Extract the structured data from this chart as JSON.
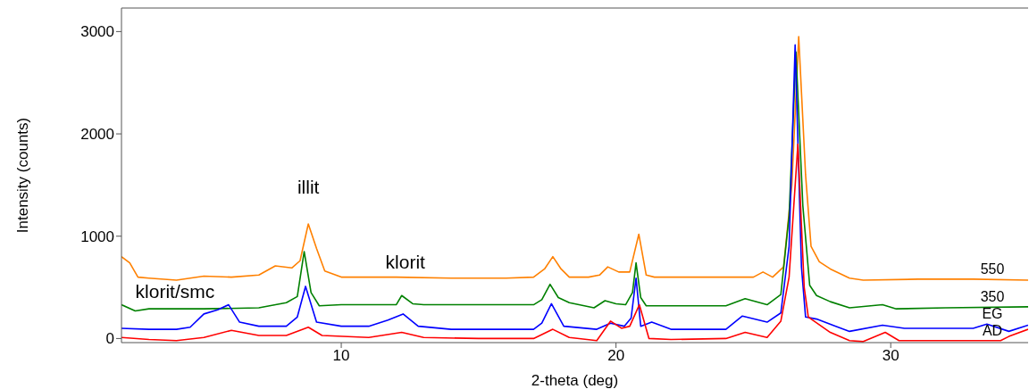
{
  "chart_data": {
    "type": "line",
    "xlabel": "2-theta (deg)",
    "ylabel": "Intensity (counts)",
    "xlim": [
      2,
      35
    ],
    "ylim": [
      -40,
      3230
    ],
    "xticks": [
      10,
      20,
      30
    ],
    "yticks": [
      0,
      1000,
      2000,
      3000
    ],
    "marker": "none",
    "line_style": "solid",
    "series": [
      {
        "name": "550",
        "color": "#ff8000",
        "x": [
          2,
          2.3,
          2.6,
          3,
          4,
          5,
          6,
          7,
          7.6,
          8.2,
          8.5,
          8.8,
          9.1,
          9.4,
          10,
          12,
          14,
          16,
          17,
          17.4,
          17.7,
          18,
          18.3,
          19,
          19.4,
          19.7,
          20.1,
          20.5,
          20.83,
          21.1,
          21.4,
          23,
          25,
          25.35,
          25.7,
          26.1,
          26.4,
          26.65,
          26.9,
          27.1,
          27.4,
          27.8,
          28.5,
          29,
          31,
          33,
          35
        ],
        "values": [
          800,
          740,
          600,
          590,
          570,
          610,
          600,
          620,
          710,
          690,
          760,
          1120,
          880,
          660,
          600,
          600,
          590,
          590,
          600,
          680,
          800,
          680,
          600,
          600,
          620,
          700,
          650,
          650,
          1020,
          620,
          600,
          600,
          600,
          650,
          600,
          700,
          1500,
          2950,
          1600,
          900,
          750,
          680,
          590,
          570,
          580,
          580,
          570
        ]
      },
      {
        "name": "350",
        "color": "#008000",
        "x": [
          2,
          2.5,
          3,
          5,
          7,
          8,
          8.4,
          8.65,
          8.9,
          9.2,
          10,
          12,
          12.2,
          12.6,
          13,
          15,
          17,
          17.3,
          17.6,
          17.9,
          18.3,
          19.2,
          19.6,
          20,
          20.35,
          20.6,
          20.73,
          20.9,
          21.1,
          22,
          24,
          24.7,
          25.5,
          26,
          26.3,
          26.55,
          26.8,
          27.05,
          27.3,
          27.8,
          28.5,
          29.7,
          30.2,
          32,
          35
        ],
        "values": [
          330,
          270,
          290,
          290,
          300,
          350,
          410,
          850,
          450,
          320,
          330,
          330,
          420,
          340,
          330,
          330,
          330,
          380,
          530,
          400,
          350,
          300,
          370,
          340,
          330,
          450,
          740,
          400,
          320,
          320,
          320,
          390,
          330,
          430,
          1200,
          2800,
          1300,
          520,
          420,
          360,
          300,
          330,
          290,
          300,
          310
        ]
      },
      {
        "name": "EG",
        "color": "#0000ff",
        "x": [
          2,
          3,
          4,
          4.5,
          5,
          5.5,
          5.9,
          6.3,
          7,
          8,
          8.4,
          8.7,
          9.1,
          10,
          11,
          11.7,
          12.25,
          12.8,
          14,
          17,
          17.3,
          17.65,
          18.1,
          19.3,
          19.8,
          20.3,
          20.55,
          20.73,
          20.9,
          21.3,
          22,
          24,
          24.6,
          25.5,
          26,
          26.3,
          26.52,
          26.75,
          26.9,
          27.3,
          28,
          28.5,
          29.7,
          30.5,
          33,
          33.5,
          34.3,
          35
        ],
        "values": [
          100,
          90,
          90,
          110,
          240,
          280,
          330,
          160,
          120,
          120,
          210,
          510,
          160,
          120,
          120,
          180,
          240,
          120,
          90,
          90,
          150,
          340,
          120,
          90,
          150,
          120,
          200,
          590,
          120,
          160,
          90,
          90,
          220,
          160,
          250,
          900,
          2870,
          700,
          210,
          190,
          120,
          70,
          130,
          100,
          100,
          140,
          70,
          130
        ]
      },
      {
        "name": "AD",
        "color": "#ff0000",
        "x": [
          2,
          3,
          4,
          5,
          6,
          7,
          8,
          8.8,
          9.3,
          11,
          12.2,
          13,
          15,
          17,
          17.7,
          18.3,
          19.3,
          19.8,
          20.2,
          20.5,
          20.85,
          21.2,
          22,
          24,
          24.7,
          25.5,
          26,
          26.3,
          26.62,
          26.85,
          27,
          27.8,
          28.5,
          29,
          29.8,
          30.3,
          32,
          34,
          34.3,
          35
        ],
        "values": [
          10,
          -10,
          -20,
          10,
          80,
          30,
          30,
          110,
          30,
          10,
          60,
          10,
          0,
          0,
          90,
          10,
          -20,
          170,
          100,
          120,
          330,
          0,
          -10,
          0,
          60,
          10,
          170,
          600,
          1900,
          500,
          210,
          60,
          -20,
          -30,
          60,
          -20,
          -20,
          -20,
          20,
          90
        ]
      }
    ],
    "annotations": [
      {
        "text": "illit",
        "x": 8.8,
        "y": 1120
      },
      {
        "text": "klorit/smc",
        "x": 5.9,
        "y": 330
      },
      {
        "text": "klorit",
        "x": 12.2,
        "y": 420
      }
    ]
  }
}
